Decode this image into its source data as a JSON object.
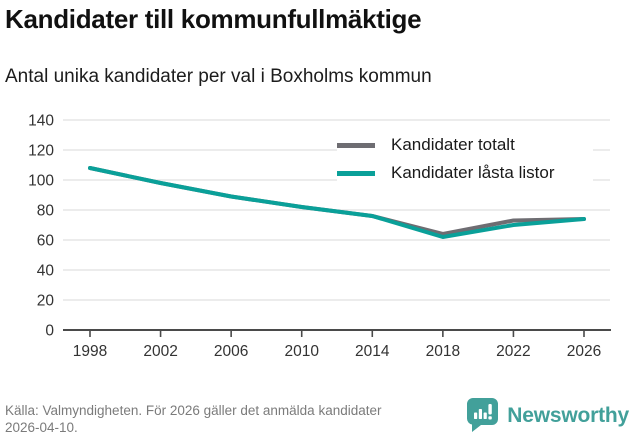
{
  "header": {
    "title": "Kandidater till kommunfullmäktige",
    "subtitle": "Antal unika kandidater per val i Boxholms kommun"
  },
  "chart_data": {
    "type": "line",
    "x": [
      1998,
      2002,
      2006,
      2010,
      2014,
      2018,
      2022,
      2026
    ],
    "series": [
      {
        "name": "Kandidater totalt",
        "color": "#6e6d72",
        "values": [
          108,
          98,
          89,
          82,
          76,
          64,
          73,
          74
        ]
      },
      {
        "name": "Kandidater låsta listor",
        "color": "#0aa099",
        "values": [
          108,
          98,
          89,
          82,
          76,
          62,
          70,
          74
        ]
      }
    ],
    "title": "Kandidater till kommunfullmäktige",
    "xlabel": "",
    "ylabel": "",
    "ylim": [
      0,
      140
    ],
    "yticks": [
      0,
      20,
      40,
      60,
      80,
      100,
      120,
      140
    ],
    "grid": true,
    "legend_position": "top-right"
  },
  "footer": {
    "source": "Källa: Valmyndigheten. För 2026 gäller det anmälda kandidater 2026-04-10.",
    "brand": "Newsworthy"
  },
  "colors": {
    "grid": "#e1e1e1",
    "axis": "#4a4a4a",
    "tick_label": "#333333",
    "footer_text": "#7b7b7b",
    "brand_teal": "#42a09a"
  }
}
